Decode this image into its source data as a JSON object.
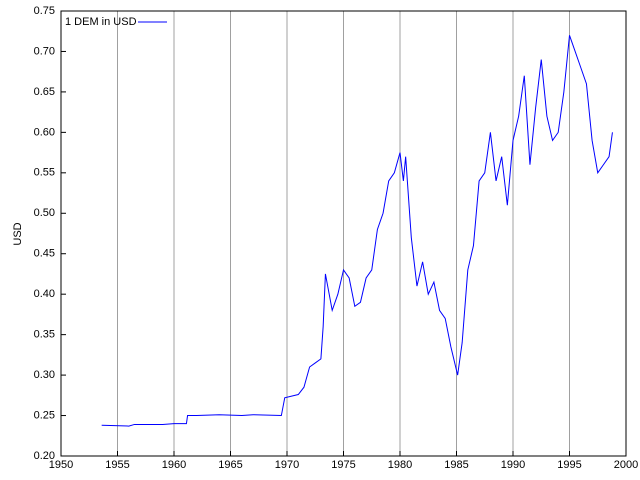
{
  "chart_data": {
    "type": "line",
    "ylabel": "USD",
    "grid": "x",
    "legend": "upper left",
    "x": [
      1953.6,
      1956,
      1956.5,
      1959,
      1960,
      1961.1,
      1961.2,
      1962,
      1964,
      1966,
      1967,
      1969.5,
      1969.8,
      1971,
      1971.5,
      1972,
      1972.5,
      1973,
      1973.2,
      1973.4,
      1973.6,
      1974,
      1974.5,
      1975,
      1975.5,
      1976,
      1976.5,
      1977,
      1977.5,
      1978,
      1978.5,
      1979,
      1979.5,
      1980,
      1980.3,
      1980.5,
      1981,
      1981.5,
      1982,
      1982.5,
      1983,
      1983.5,
      1984,
      1984.5,
      1985.1,
      1985.5,
      1986,
      1986.5,
      1987,
      1987.5,
      1988,
      1988.5,
      1989,
      1989.5,
      1990,
      1990.5,
      1991,
      1991.5,
      1992,
      1992.5,
      1993,
      1993.5,
      1994,
      1994.5,
      1995,
      1995.5,
      1996,
      1996.5,
      1997,
      1997.5,
      1998,
      1998.5,
      1998.8
    ],
    "series": [
      {
        "name": "1 DEM in USD",
        "color": "#0000ff",
        "values": [
          0.238,
          0.237,
          0.239,
          0.239,
          0.24,
          0.24,
          0.25,
          0.25,
          0.251,
          0.25,
          0.251,
          0.25,
          0.272,
          0.276,
          0.285,
          0.31,
          0.315,
          0.32,
          0.36,
          0.425,
          0.41,
          0.38,
          0.4,
          0.43,
          0.42,
          0.385,
          0.39,
          0.42,
          0.43,
          0.48,
          0.5,
          0.54,
          0.55,
          0.575,
          0.54,
          0.57,
          0.47,
          0.41,
          0.44,
          0.4,
          0.415,
          0.38,
          0.37,
          0.335,
          0.3,
          0.34,
          0.43,
          0.46,
          0.54,
          0.55,
          0.6,
          0.54,
          0.57,
          0.51,
          0.59,
          0.62,
          0.67,
          0.56,
          0.63,
          0.69,
          0.62,
          0.59,
          0.6,
          0.65,
          0.72,
          0.7,
          0.68,
          0.66,
          0.59,
          0.55,
          0.56,
          0.57,
          0.6
        ]
      }
    ],
    "xlim": [
      1950,
      2000
    ],
    "xticks": [
      1950,
      1955,
      1960,
      1965,
      1970,
      1975,
      1980,
      1985,
      1990,
      1995,
      2000
    ],
    "ylim": [
      0.2,
      0.75
    ],
    "yticks": [
      {
        "value": 0.2,
        "label": "0.20"
      },
      {
        "value": 0.25,
        "label": "0.25"
      },
      {
        "value": 0.3,
        "label": "0.30"
      },
      {
        "value": 0.35,
        "label": "0.35"
      },
      {
        "value": 0.4,
        "label": "0.40"
      },
      {
        "value": 0.45,
        "label": "0.45"
      },
      {
        "value": 0.5,
        "label": "0.50"
      },
      {
        "value": 0.55,
        "label": "0.55"
      },
      {
        "value": 0.6,
        "label": "0.60"
      },
      {
        "value": 0.65,
        "label": "0.65"
      },
      {
        "value": 0.7,
        "label": "0.70"
      },
      {
        "value": 0.75,
        "label": "0.75"
      }
    ]
  }
}
